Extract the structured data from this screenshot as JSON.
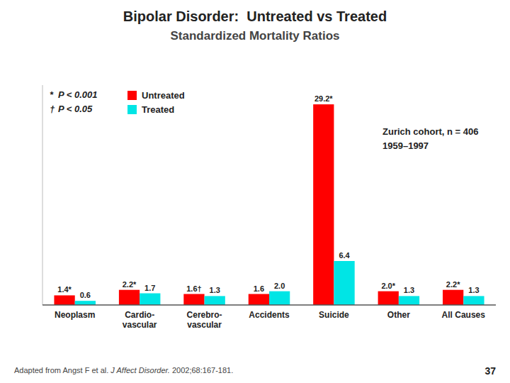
{
  "chart_data": {
    "type": "bar",
    "title": "Bipolar Disorder:  Untreated vs Treated",
    "subtitle": "Standardized Mortality Ratios",
    "categories": [
      "Neoplasm",
      "Cardio-\nvascular",
      "Cerebro-\nvascular",
      "Accidents",
      "Suicide",
      "Other",
      "All Causes"
    ],
    "series": [
      {
        "name": "Untreated",
        "color": "#ff0000",
        "values": [
          1.4,
          2.2,
          1.6,
          1.6,
          29.2,
          2.0,
          2.2
        ],
        "value_labels": [
          "1.4*",
          "2.2*",
          "1.6†",
          "1.6",
          "29.2*",
          "2.0*",
          "2.2*"
        ]
      },
      {
        "name": "Treated",
        "color": "#00e5e5",
        "values": [
          0.6,
          1.7,
          1.3,
          2.0,
          6.4,
          1.3,
          1.3
        ],
        "value_labels": [
          "0.6",
          "1.7",
          "1.3",
          "2.0",
          "6.4",
          "1.3",
          "1.3"
        ]
      }
    ],
    "ylim": [
      0,
      32
    ],
    "tick_labels": "x",
    "grid": false,
    "legend": "upper left",
    "data_labels": true,
    "annotations": [
      "*",
      "P < 0.001",
      "†",
      "P < 0.05",
      "Zurich cohort, n = 406\n1959–1997",
      "Adapted from Angst F et al. ",
      "J Affect Disorder.",
      " 2002;68:167-181.",
      "37"
    ]
  }
}
